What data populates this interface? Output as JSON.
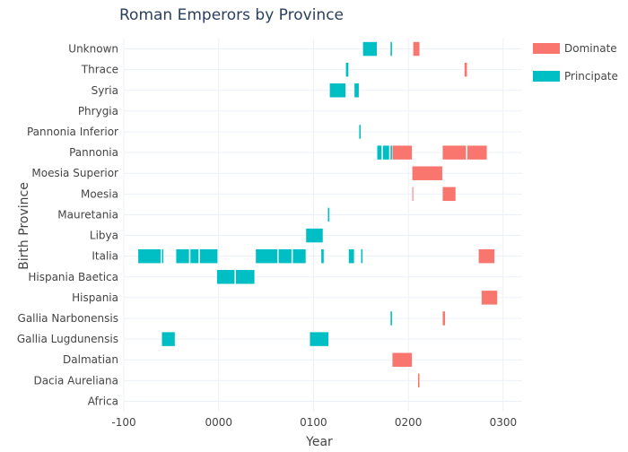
{
  "chart_data": {
    "type": "timeline",
    "title": "Roman Emperors by Province",
    "xlabel": "Year",
    "ylabel": "Birth Province",
    "x_range": [
      -100,
      320
    ],
    "x_ticks": [
      -100,
      0,
      100,
      200,
      300
    ],
    "x_tick_labels": [
      "-100",
      "0000",
      "0100",
      "0200",
      "0300"
    ],
    "grid": true,
    "legend_position": "top-right",
    "categories": [
      "Unknown",
      "Thrace",
      "Syria",
      "Phrygia",
      "Pannonia Inferior",
      "Pannonia",
      "Moesia Superior",
      "Moesia",
      "Mauretania",
      "Libya",
      "Italia",
      "Hispania Baetica",
      "Hispania",
      "Gallia Narbonensis",
      "Gallia Lugdunensis",
      "Dalmatian",
      "Dacia Aureliana",
      "Africa"
    ],
    "series": [
      {
        "name": "Dominate",
        "color": "#F8766D",
        "segments": [
          {
            "province": "Unknown",
            "start": 205,
            "end": 212
          },
          {
            "province": "Thrace",
            "start": 259,
            "end": 262
          },
          {
            "province": "Pannonia",
            "start": 183,
            "end": 204
          },
          {
            "province": "Pannonia",
            "start": 236,
            "end": 261
          },
          {
            "province": "Pannonia",
            "start": 262,
            "end": 283
          },
          {
            "province": "Moesia Superior",
            "start": 204,
            "end": 236
          },
          {
            "province": "Moesia",
            "start": 204,
            "end": 205
          },
          {
            "province": "Moesia",
            "start": 236,
            "end": 250
          },
          {
            "province": "Italia",
            "start": 274,
            "end": 291
          },
          {
            "province": "Hispania",
            "start": 277,
            "end": 294
          },
          {
            "province": "Gallia Narbonensis",
            "start": 236,
            "end": 239
          },
          {
            "province": "Dalmatian",
            "start": 183,
            "end": 204
          },
          {
            "province": "Dacia Aureliana",
            "start": 210,
            "end": 212
          }
        ]
      },
      {
        "name": "Principate",
        "color": "#00BFC4",
        "segments": [
          {
            "province": "Unknown",
            "start": 152,
            "end": 167
          },
          {
            "province": "Unknown",
            "start": 181,
            "end": 183
          },
          {
            "province": "Thrace",
            "start": 134,
            "end": 137
          },
          {
            "province": "Syria",
            "start": 117,
            "end": 134
          },
          {
            "province": "Syria",
            "start": 143,
            "end": 148
          },
          {
            "province": "Pannonia Inferior",
            "start": 148,
            "end": 150
          },
          {
            "province": "Pannonia",
            "start": 167,
            "end": 172
          },
          {
            "province": "Pannonia",
            "start": 173,
            "end": 180
          },
          {
            "province": "Pannonia",
            "start": 181,
            "end": 183
          },
          {
            "province": "Mauretania",
            "start": 115,
            "end": 117
          },
          {
            "province": "Libya",
            "start": 92,
            "end": 110
          },
          {
            "province": "Italia",
            "start": -85,
            "end": -61
          },
          {
            "province": "Italia",
            "start": -60,
            "end": -58
          },
          {
            "province": "Italia",
            "start": -45,
            "end": -31
          },
          {
            "province": "Italia",
            "start": -30,
            "end": -21
          },
          {
            "province": "Italia",
            "start": -20,
            "end": -1
          },
          {
            "province": "Italia",
            "start": 39,
            "end": 62
          },
          {
            "province": "Italia",
            "start": 63,
            "end": 77
          },
          {
            "province": "Italia",
            "start": 78,
            "end": 92
          },
          {
            "province": "Italia",
            "start": 108,
            "end": 111
          },
          {
            "province": "Italia",
            "start": 137,
            "end": 143
          },
          {
            "province": "Italia",
            "start": 150,
            "end": 152
          },
          {
            "province": "Hispania Baetica",
            "start": -2,
            "end": 17
          },
          {
            "province": "Hispania Baetica",
            "start": 18,
            "end": 38
          },
          {
            "province": "Gallia Narbonensis",
            "start": 181,
            "end": 183
          },
          {
            "province": "Gallia Lugdunensis",
            "start": -60,
            "end": -46
          },
          {
            "province": "Gallia Lugdunensis",
            "start": 96,
            "end": 116
          }
        ]
      }
    ]
  }
}
